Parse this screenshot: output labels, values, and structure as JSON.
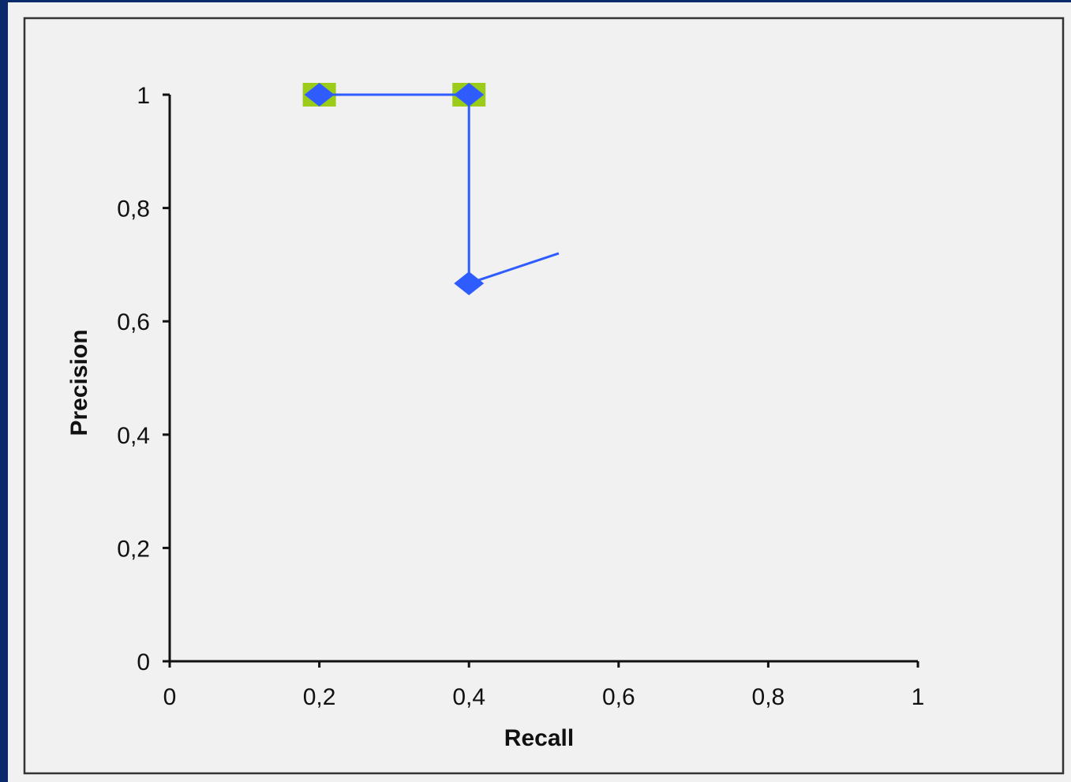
{
  "chart_data": {
    "type": "line",
    "title": "",
    "xlabel": "Recall",
    "ylabel": "Precision",
    "xlim": [
      0,
      1
    ],
    "ylim": [
      0,
      1
    ],
    "xticks": [
      "0",
      "0,2",
      "0,4",
      "0,6",
      "0,8",
      "1"
    ],
    "yticks": [
      "0",
      "0,2",
      "0,4",
      "0,6",
      "0,8",
      "1"
    ],
    "grid": false,
    "legend": "none",
    "series": [
      {
        "marker": "diamond",
        "color": "#2f5cff",
        "points": [
          {
            "x": 0.2,
            "y": 1.0
          },
          {
            "x": 0.4,
            "y": 1.0
          },
          {
            "x": 0.4,
            "y": 0.667
          },
          {
            "x": 0.52,
            "y": 0.72
          }
        ],
        "marked": [
          0,
          1,
          2
        ]
      },
      {
        "marker": "square",
        "color": "#9ccc1a",
        "points": [
          {
            "x": 0.2,
            "y": 1.0
          },
          {
            "x": 0.4,
            "y": 1.0
          }
        ]
      }
    ]
  }
}
